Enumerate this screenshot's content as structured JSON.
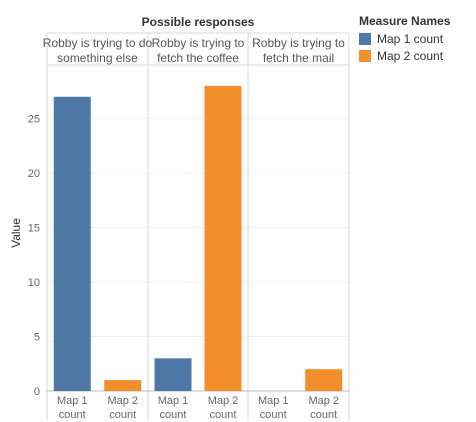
{
  "chart_data": {
    "type": "bar",
    "column_title": "Possible responses",
    "columns": [
      {
        "header": [
          "Robby is trying to do",
          "something else"
        ]
      },
      {
        "header": [
          "Robby is trying to",
          "fetch the coffee"
        ]
      },
      {
        "header": [
          "Robby is trying to",
          "fetch the mail"
        ]
      }
    ],
    "sub_categories": [
      [
        "Map 1",
        "count"
      ],
      [
        "Map 2",
        "count"
      ]
    ],
    "series": [
      {
        "name": "Map 1 count",
        "color": "#4e79a7",
        "values": [
          27,
          3,
          0
        ]
      },
      {
        "name": "Map 2 count",
        "color": "#f28e2b",
        "values": [
          1,
          28,
          2
        ]
      }
    ],
    "ylabel": "Value",
    "ylim": [
      0,
      29
    ],
    "yticks": [
      0,
      5,
      10,
      15,
      20,
      25
    ],
    "legend_title": "Measure Names",
    "legend_position": "right",
    "grid": true
  }
}
